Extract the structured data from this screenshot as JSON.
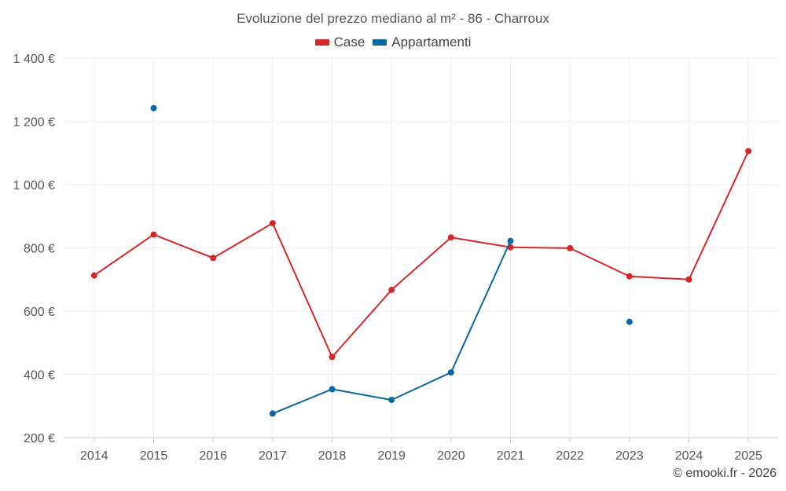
{
  "chart_data": {
    "type": "line",
    "title": "Evoluzione del prezzo mediano al m² - 86 - Charroux",
    "categories": [
      "2014",
      "2015",
      "2016",
      "2017",
      "2018",
      "2019",
      "2020",
      "2021",
      "2022",
      "2023",
      "2024",
      "2025"
    ],
    "ylim": [
      200,
      1400
    ],
    "yticks": [
      200,
      400,
      600,
      800,
      1000,
      1200,
      1400
    ],
    "ytick_labels": [
      "200 €",
      "400 €",
      "600 €",
      "800 €",
      "1 000 €",
      "1 200 €",
      "1 400 €"
    ],
    "grid": true,
    "legend_position": "top-center",
    "series": [
      {
        "name": "Case",
        "color": "#d62728",
        "values": [
          713,
          842,
          768,
          878,
          455,
          667,
          833,
          802,
          799,
          710,
          700,
          1106
        ]
      },
      {
        "name": "Appartamenti",
        "color": "#0b67a1",
        "values": [
          null,
          1242,
          null,
          276,
          353,
          319,
          406,
          822,
          null,
          566,
          null,
          null
        ]
      }
    ]
  },
  "credit": "© emooki.fr - 2026"
}
